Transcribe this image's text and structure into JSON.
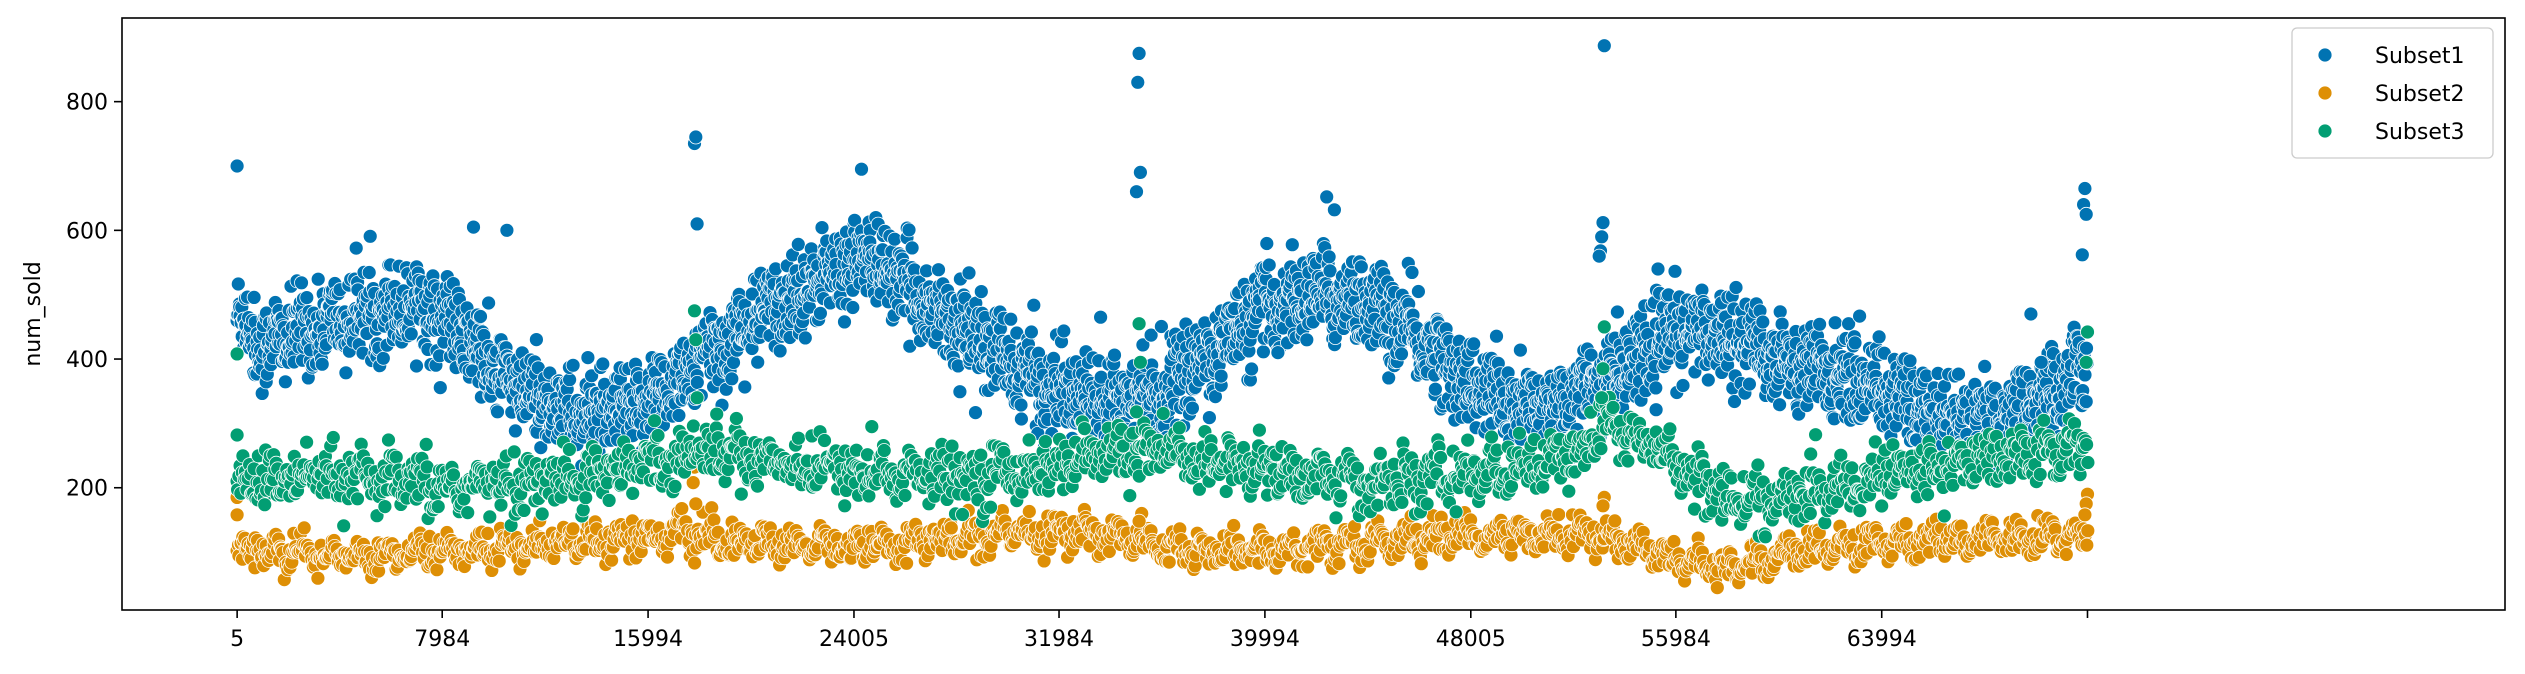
{
  "chart_data": {
    "type": "scatter",
    "title": "",
    "xlabel": "",
    "ylabel": "num_sold",
    "xlim": [
      -4475,
      88245
    ],
    "ylim": [
      10,
      930
    ],
    "x_tick_values": [
      5,
      7984,
      15994,
      24005,
      31984,
      39994,
      48005,
      55984,
      63994,
      72000
    ],
    "x_tick_labels": [
      "5",
      "7984",
      "15994",
      "24005",
      "31984",
      "39994",
      "48005",
      "55984",
      "63994",
      ""
    ],
    "y_tick_values": [
      200,
      400,
      600,
      800
    ],
    "y_tick_labels": [
      "200",
      "400",
      "600",
      "800"
    ],
    "grid": false,
    "legend_position": "top-right",
    "x_step": 40,
    "x_end": 72000,
    "series": [
      {
        "name": "Subset1",
        "color": "#0173b2",
        "points_per_step": 2,
        "x_anchors": [
          0,
          1000,
          3000,
          5000,
          7000,
          8500,
          10000,
          11500,
          13500,
          15000,
          16500,
          18500,
          20500,
          22500,
          24500,
          26500,
          28500,
          30500,
          32000,
          34000,
          36000,
          38000,
          40000,
          42000,
          44000,
          46000,
          48000,
          50000,
          52000,
          54000,
          56000,
          58000,
          60000,
          62000,
          64000,
          66000,
          68000,
          70000,
          72000
        ],
        "y_anchors": [
          470,
          420,
          450,
          470,
          490,
          450,
          380,
          340,
          310,
          310,
          350,
          410,
          470,
          520,
          560,
          500,
          440,
          380,
          350,
          340,
          350,
          410,
          480,
          500,
          490,
          430,
          360,
          320,
          340,
          390,
          440,
          440,
          400,
          380,
          360,
          310,
          300,
          330,
          390
        ],
        "spread": 60,
        "outliers": [
          [
            5,
            700
          ],
          [
            17800,
            735
          ],
          [
            17850,
            745
          ],
          [
            17900,
            610
          ],
          [
            24300,
            695
          ],
          [
            35100,
            875
          ],
          [
            35050,
            830
          ],
          [
            35150,
            690
          ],
          [
            35000,
            660
          ],
          [
            42400,
            652
          ],
          [
            42700,
            632
          ],
          [
            53200,
            887
          ],
          [
            53150,
            612
          ],
          [
            53100,
            590
          ],
          [
            53050,
            568
          ],
          [
            53000,
            560
          ],
          [
            71900,
            665
          ],
          [
            71850,
            640
          ],
          [
            71950,
            625
          ],
          [
            71800,
            562
          ],
          [
            40500,
            410
          ],
          [
            33600,
            465
          ],
          [
            69800,
            470
          ],
          [
            70200,
            395
          ],
          [
            10500,
            600
          ],
          [
            9200,
            605
          ]
        ]
      },
      {
        "name": "Subset2",
        "color": "#de8f05",
        "points_per_step": 1,
        "x_anchors": [
          0,
          4000,
          8000,
          12000,
          16000,
          17500,
          19000,
          22000,
          24000,
          28000,
          32000,
          34000,
          36000,
          40000,
          44000,
          48000,
          52000,
          53200,
          56000,
          58000,
          60000,
          64000,
          68000,
          72000
        ],
        "y_anchors": [
          105,
          95,
          100,
          115,
          125,
          130,
          115,
          110,
          110,
          120,
          130,
          130,
          105,
          100,
          115,
          125,
          130,
          125,
          90,
          75,
          95,
          115,
          120,
          125
        ],
        "spread": 22,
        "outliers": [
          [
            5,
            185
          ],
          [
            5,
            158
          ],
          [
            17800,
            232
          ],
          [
            17750,
            208
          ],
          [
            17850,
            175
          ],
          [
            35200,
            160
          ],
          [
            35100,
            148
          ],
          [
            53200,
            185
          ],
          [
            53150,
            172
          ],
          [
            72000,
            190
          ],
          [
            71950,
            175
          ],
          [
            71900,
            158
          ]
        ]
      },
      {
        "name": "Subset3",
        "color": "#029e73",
        "points_per_step": 1,
        "x_anchors": [
          0,
          4000,
          8000,
          12000,
          16000,
          18000,
          20000,
          24000,
          28000,
          32000,
          35000,
          36000,
          40000,
          44000,
          48000,
          52000,
          53200,
          56000,
          58000,
          60000,
          64000,
          68000,
          72000
        ],
        "y_anchors": [
          210,
          215,
          200,
          210,
          240,
          260,
          250,
          225,
          215,
          235,
          260,
          250,
          230,
          205,
          220,
          245,
          300,
          245,
          180,
          180,
          215,
          245,
          265
        ],
        "spread": 38,
        "outliers": [
          [
            5,
            408
          ],
          [
            5,
            282
          ],
          [
            17800,
            475
          ],
          [
            17850,
            430
          ],
          [
            17900,
            340
          ],
          [
            35100,
            455
          ],
          [
            35150,
            395
          ],
          [
            35000,
            318
          ],
          [
            53200,
            450
          ],
          [
            53150,
            385
          ],
          [
            53100,
            340
          ],
          [
            72000,
            442
          ],
          [
            71950,
            395
          ],
          [
            24700,
            295
          ]
        ]
      }
    ]
  }
}
